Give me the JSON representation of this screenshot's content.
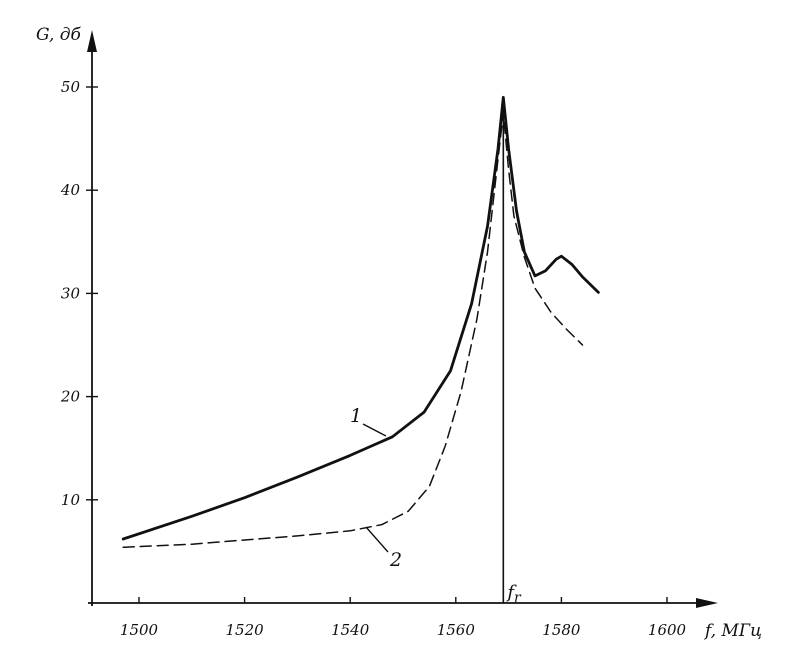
{
  "chart_data": {
    "type": "line",
    "xlabel": "f, МГц",
    "ylabel": "G, дб",
    "xlim": [
      1490,
      1610
    ],
    "ylim": [
      0,
      50
    ],
    "x_ticks": [
      1500,
      1520,
      1540,
      1560,
      1580,
      1600
    ],
    "y_ticks": [
      10,
      20,
      30,
      40,
      50
    ],
    "grid": false,
    "marker": {
      "label": "f",
      "label_sub": "r",
      "x": 1569
    },
    "series": [
      {
        "name": "1",
        "style": "solid",
        "points": [
          [
            1497,
            6.2
          ],
          [
            1510,
            8.4
          ],
          [
            1520,
            10.2
          ],
          [
            1530,
            12.2
          ],
          [
            1540,
            14.3
          ],
          [
            1548,
            16.1
          ],
          [
            1554,
            18.5
          ],
          [
            1559,
            22.5
          ],
          [
            1563,
            29
          ],
          [
            1566,
            36.5
          ],
          [
            1568,
            44
          ],
          [
            1569,
            49
          ],
          [
            1570,
            44
          ],
          [
            1571.5,
            38
          ],
          [
            1573,
            34
          ],
          [
            1575,
            31.7
          ],
          [
            1577,
            32.2
          ],
          [
            1579,
            33.3
          ],
          [
            1580,
            33.6
          ],
          [
            1582,
            32.8
          ],
          [
            1584,
            31.6
          ],
          [
            1587,
            30.1
          ]
        ]
      },
      {
        "name": "2",
        "style": "dashed",
        "points": [
          [
            1497,
            5.4
          ],
          [
            1510,
            5.7
          ],
          [
            1520,
            6.1
          ],
          [
            1530,
            6.5
          ],
          [
            1540,
            7.0
          ],
          [
            1546,
            7.6
          ],
          [
            1551,
            8.9
          ],
          [
            1555,
            11.3
          ],
          [
            1558,
            15.2
          ],
          [
            1561,
            20.5
          ],
          [
            1564,
            27.5
          ],
          [
            1566,
            34
          ],
          [
            1568,
            43
          ],
          [
            1569,
            47.5
          ],
          [
            1570,
            42
          ],
          [
            1571,
            37.5
          ],
          [
            1573,
            33.5
          ],
          [
            1575,
            30.5
          ],
          [
            1578,
            28.2
          ],
          [
            1581,
            26.5
          ],
          [
            1584,
            25
          ]
        ]
      }
    ]
  }
}
